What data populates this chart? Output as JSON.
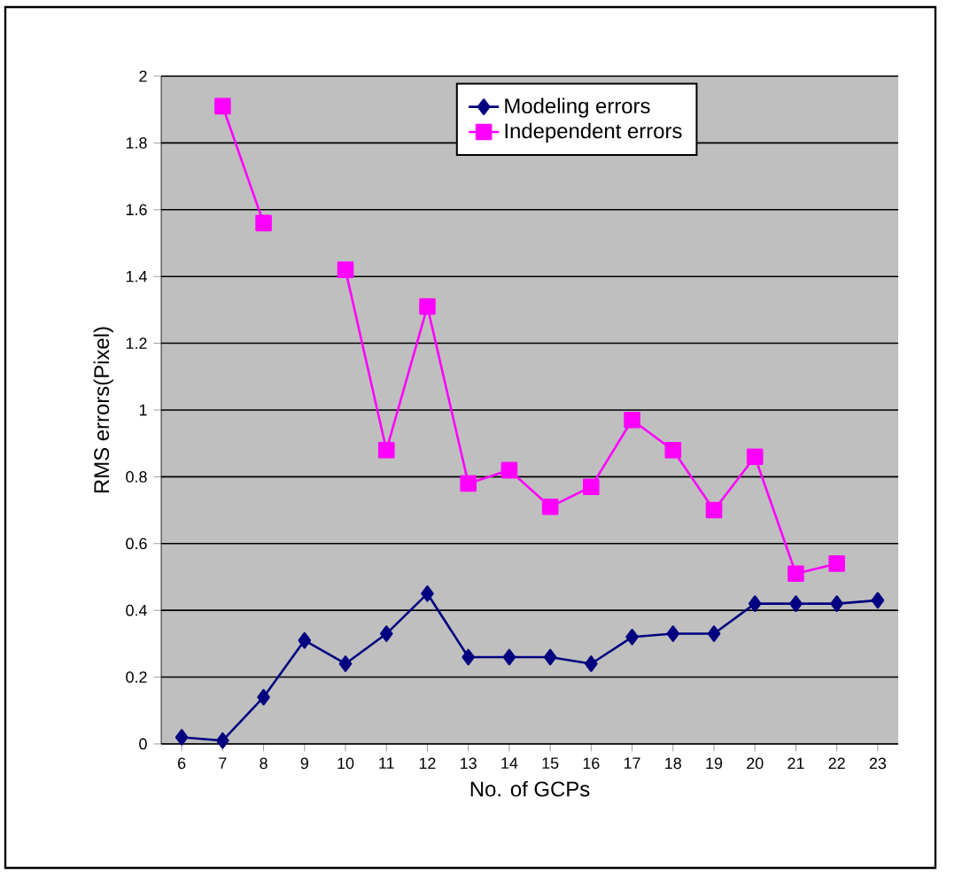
{
  "chart_data": {
    "type": "line",
    "xlabel": "No. of GCPs",
    "ylabel": "RMS errors(Pixel)",
    "categories": [
      "6",
      "7",
      "8",
      "9",
      "10",
      "11",
      "12",
      "13",
      "14",
      "15",
      "16",
      "17",
      "18",
      "19",
      "20",
      "21",
      "22",
      "23"
    ],
    "series": [
      {
        "name": "Modeling errors",
        "color": "#000080",
        "marker": "diamond",
        "values": [
          0.02,
          0.01,
          0.14,
          0.31,
          0.24,
          0.33,
          0.45,
          0.26,
          0.26,
          0.26,
          0.24,
          0.32,
          0.33,
          0.33,
          0.42,
          0.42,
          0.42,
          0.43
        ]
      },
      {
        "name": "Independent errors",
        "color": "#ff00ff",
        "marker": "square",
        "values": [
          null,
          1.91,
          1.56,
          null,
          1.42,
          0.88,
          1.31,
          0.78,
          0.82,
          0.71,
          0.77,
          0.97,
          0.88,
          0.7,
          0.86,
          0.51,
          0.54,
          null
        ]
      }
    ],
    "ylim": [
      0,
      2
    ],
    "yticks": [
      0,
      0.2,
      0.4,
      0.6,
      0.8,
      1,
      1.2,
      1.4,
      1.6,
      1.8,
      2
    ],
    "grid": "y",
    "legend": "top right",
    "line_style": "solid"
  }
}
